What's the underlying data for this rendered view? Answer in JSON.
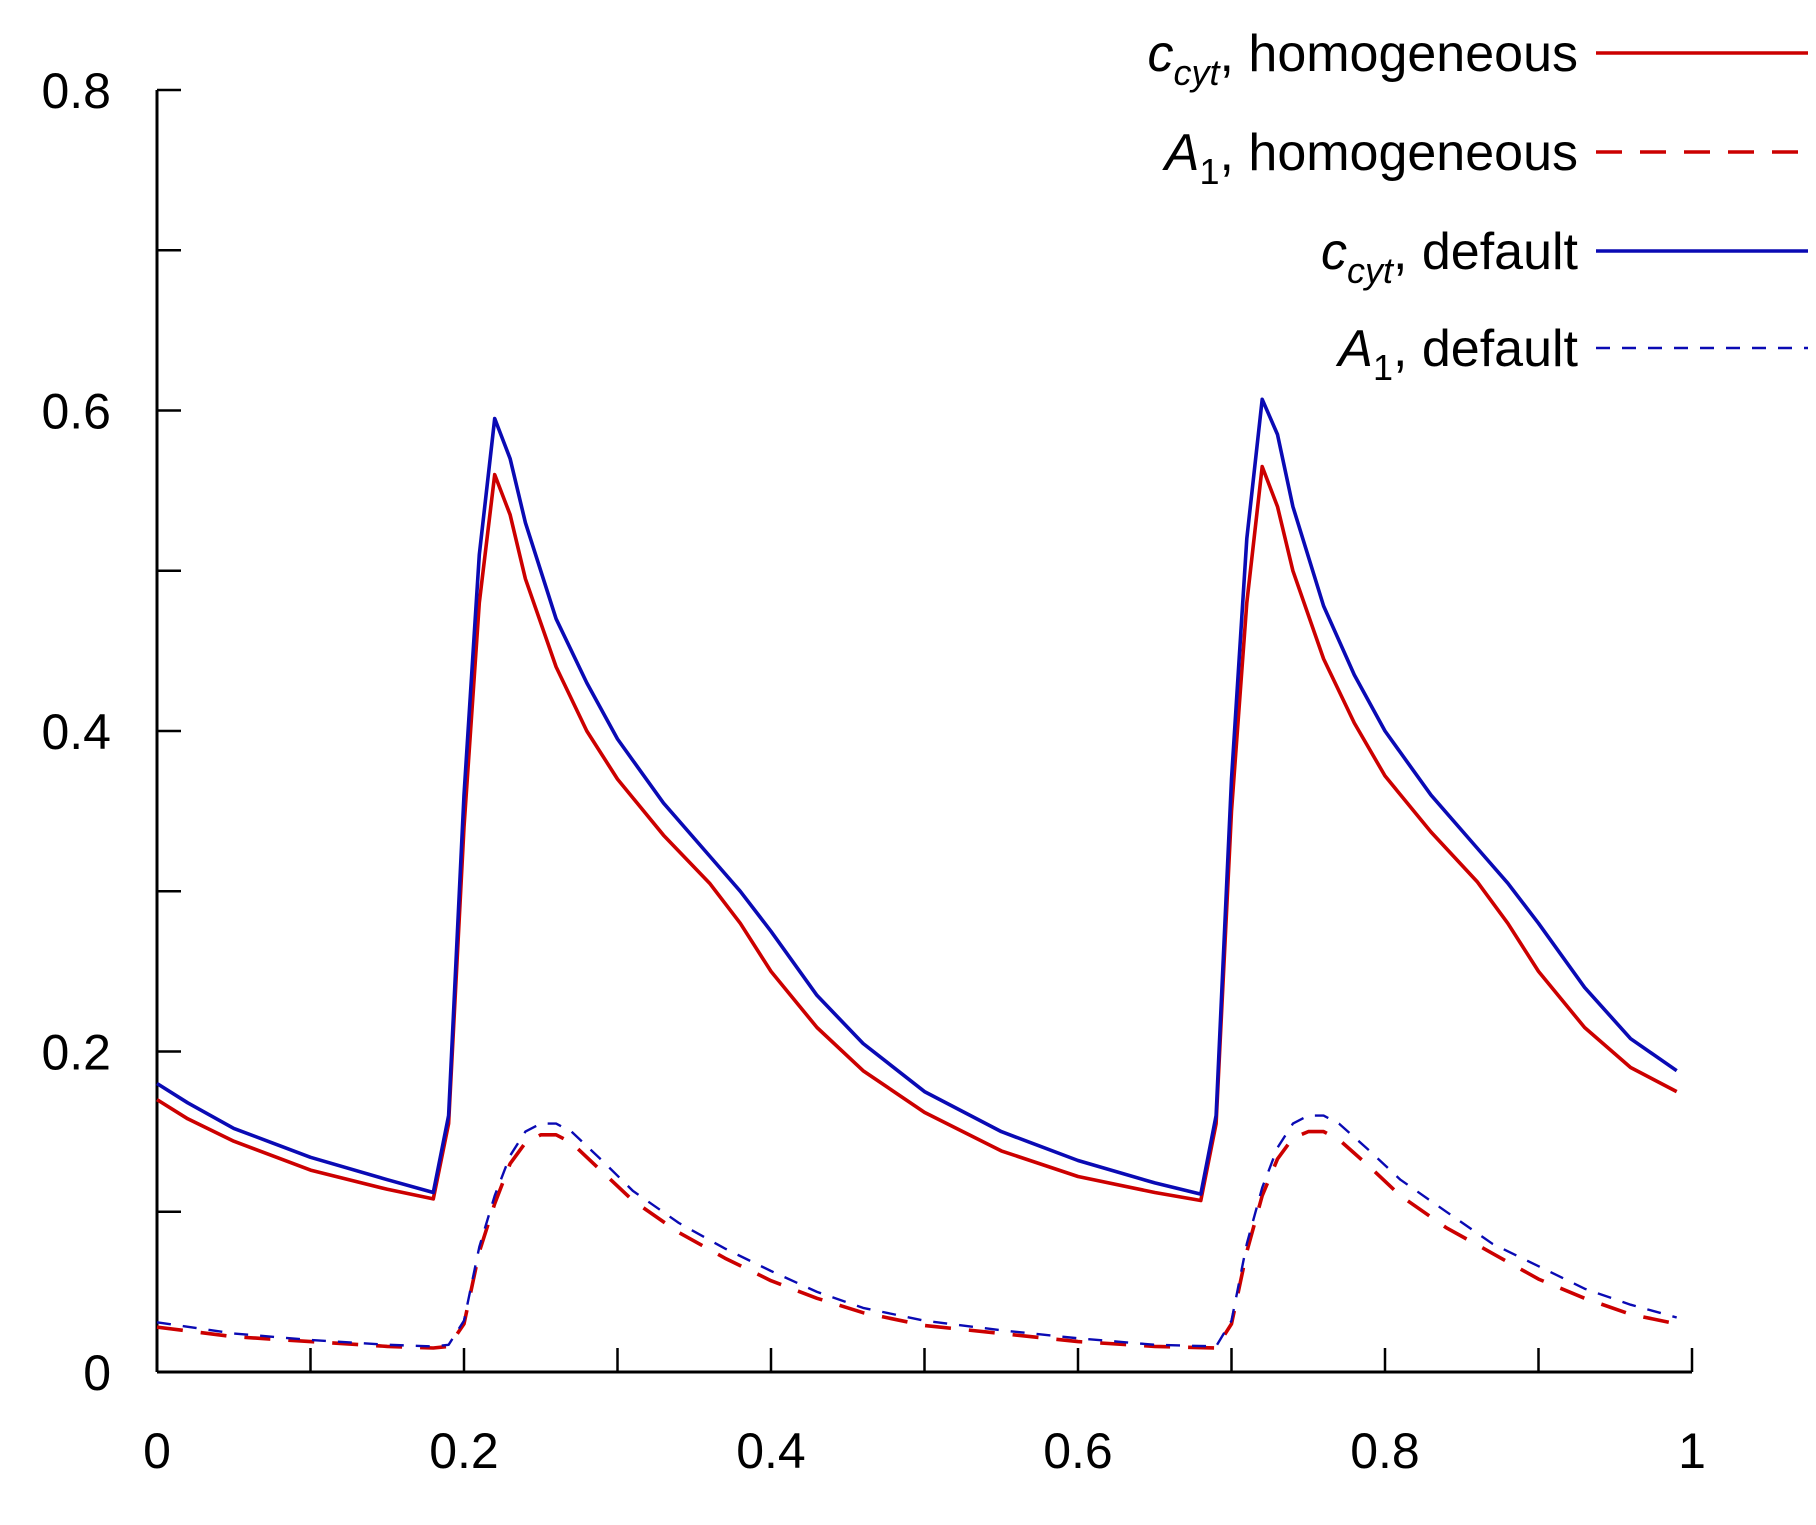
{
  "chart_data": {
    "type": "line",
    "title": "",
    "xlabel": "",
    "ylabel": "",
    "xlim": [
      0,
      1
    ],
    "ylim": [
      0,
      0.8
    ],
    "x_ticks": [
      0,
      0.1,
      0.2,
      0.3,
      0.4,
      0.5,
      0.6,
      0.7,
      0.8,
      0.9,
      1.0
    ],
    "x_tick_labels": [
      "0",
      "0.2",
      "0.4",
      "0.6",
      "0.8",
      "1"
    ],
    "x_tick_label_values": [
      0,
      0.2,
      0.4,
      0.6,
      0.8,
      1
    ],
    "y_ticks": [
      0,
      0.1,
      0.2,
      0.3,
      0.4,
      0.5,
      0.6,
      0.7,
      0.8
    ],
    "y_tick_labels": [
      "0",
      "0.2",
      "0.4",
      "0.6",
      "0.8"
    ],
    "y_tick_label_values": [
      0,
      0.2,
      0.4,
      0.6,
      0.8
    ],
    "grid": false,
    "legend_position": "top-right",
    "series": [
      {
        "name_main": "c",
        "name_sub": "cyt",
        "name_rest": ", homogeneous",
        "color": "#cc0000",
        "dash": "solid",
        "points": [
          [
            0,
            0.17
          ],
          [
            0.02,
            0.158
          ],
          [
            0.05,
            0.144
          ],
          [
            0.1,
            0.126
          ],
          [
            0.15,
            0.114
          ],
          [
            0.18,
            0.108
          ],
          [
            0.19,
            0.155
          ],
          [
            0.2,
            0.34
          ],
          [
            0.21,
            0.48
          ],
          [
            0.22,
            0.56
          ],
          [
            0.23,
            0.535
          ],
          [
            0.24,
            0.495
          ],
          [
            0.26,
            0.44
          ],
          [
            0.28,
            0.4
          ],
          [
            0.3,
            0.37
          ],
          [
            0.33,
            0.335
          ],
          [
            0.36,
            0.305
          ],
          [
            0.38,
            0.28
          ],
          [
            0.4,
            0.25
          ],
          [
            0.43,
            0.215
          ],
          [
            0.46,
            0.188
          ],
          [
            0.5,
            0.162
          ],
          [
            0.55,
            0.138
          ],
          [
            0.6,
            0.122
          ],
          [
            0.65,
            0.112
          ],
          [
            0.68,
            0.107
          ],
          [
            0.69,
            0.155
          ],
          [
            0.7,
            0.35
          ],
          [
            0.71,
            0.48
          ],
          [
            0.72,
            0.565
          ],
          [
            0.73,
            0.54
          ],
          [
            0.74,
            0.5
          ],
          [
            0.76,
            0.445
          ],
          [
            0.78,
            0.405
          ],
          [
            0.8,
            0.372
          ],
          [
            0.83,
            0.337
          ],
          [
            0.86,
            0.306
          ],
          [
            0.88,
            0.28
          ],
          [
            0.9,
            0.25
          ],
          [
            0.93,
            0.215
          ],
          [
            0.96,
            0.19
          ],
          [
            0.99,
            0.175
          ]
        ]
      },
      {
        "name_main": "A",
        "name_sub": "1",
        "name_rest": ", homogeneous",
        "color": "#cc0000",
        "dash": "long-dash",
        "points": [
          [
            0,
            0.028
          ],
          [
            0.05,
            0.022
          ],
          [
            0.1,
            0.019
          ],
          [
            0.15,
            0.016
          ],
          [
            0.18,
            0.015
          ],
          [
            0.19,
            0.016
          ],
          [
            0.2,
            0.03
          ],
          [
            0.21,
            0.075
          ],
          [
            0.22,
            0.105
          ],
          [
            0.23,
            0.13
          ],
          [
            0.24,
            0.143
          ],
          [
            0.25,
            0.148
          ],
          [
            0.26,
            0.148
          ],
          [
            0.27,
            0.143
          ],
          [
            0.29,
            0.125
          ],
          [
            0.31,
            0.107
          ],
          [
            0.34,
            0.087
          ],
          [
            0.37,
            0.071
          ],
          [
            0.4,
            0.057
          ],
          [
            0.43,
            0.046
          ],
          [
            0.46,
            0.037
          ],
          [
            0.5,
            0.029
          ],
          [
            0.55,
            0.024
          ],
          [
            0.6,
            0.019
          ],
          [
            0.65,
            0.016
          ],
          [
            0.69,
            0.015
          ],
          [
            0.7,
            0.03
          ],
          [
            0.71,
            0.075
          ],
          [
            0.72,
            0.11
          ],
          [
            0.73,
            0.133
          ],
          [
            0.74,
            0.146
          ],
          [
            0.75,
            0.15
          ],
          [
            0.76,
            0.15
          ],
          [
            0.77,
            0.145
          ],
          [
            0.79,
            0.128
          ],
          [
            0.81,
            0.11
          ],
          [
            0.84,
            0.09
          ],
          [
            0.87,
            0.074
          ],
          [
            0.9,
            0.058
          ],
          [
            0.93,
            0.046
          ],
          [
            0.96,
            0.036
          ],
          [
            0.99,
            0.03
          ]
        ]
      },
      {
        "name_main": "c",
        "name_sub": "cyt",
        "name_rest": ", default",
        "color": "#0a0ab4",
        "dash": "solid",
        "points": [
          [
            0,
            0.18
          ],
          [
            0.02,
            0.168
          ],
          [
            0.05,
            0.152
          ],
          [
            0.1,
            0.134
          ],
          [
            0.15,
            0.12
          ],
          [
            0.18,
            0.112
          ],
          [
            0.19,
            0.16
          ],
          [
            0.2,
            0.36
          ],
          [
            0.21,
            0.51
          ],
          [
            0.22,
            0.595
          ],
          [
            0.23,
            0.57
          ],
          [
            0.24,
            0.53
          ],
          [
            0.26,
            0.47
          ],
          [
            0.28,
            0.43
          ],
          [
            0.3,
            0.395
          ],
          [
            0.33,
            0.355
          ],
          [
            0.36,
            0.322
          ],
          [
            0.38,
            0.3
          ],
          [
            0.4,
            0.275
          ],
          [
            0.43,
            0.235
          ],
          [
            0.46,
            0.205
          ],
          [
            0.5,
            0.175
          ],
          [
            0.55,
            0.15
          ],
          [
            0.6,
            0.132
          ],
          [
            0.65,
            0.118
          ],
          [
            0.68,
            0.111
          ],
          [
            0.69,
            0.16
          ],
          [
            0.7,
            0.37
          ],
          [
            0.71,
            0.52
          ],
          [
            0.72,
            0.607
          ],
          [
            0.73,
            0.585
          ],
          [
            0.74,
            0.54
          ],
          [
            0.76,
            0.478
          ],
          [
            0.78,
            0.435
          ],
          [
            0.8,
            0.4
          ],
          [
            0.83,
            0.36
          ],
          [
            0.86,
            0.327
          ],
          [
            0.88,
            0.305
          ],
          [
            0.9,
            0.28
          ],
          [
            0.93,
            0.24
          ],
          [
            0.96,
            0.208
          ],
          [
            0.99,
            0.188
          ]
        ]
      },
      {
        "name_main": "A",
        "name_sub": "1",
        "name_rest": ", default",
        "color": "#0a0ab4",
        "dash": "short-dash",
        "points": [
          [
            0,
            0.031
          ],
          [
            0.05,
            0.024
          ],
          [
            0.1,
            0.02
          ],
          [
            0.15,
            0.017
          ],
          [
            0.18,
            0.016
          ],
          [
            0.19,
            0.017
          ],
          [
            0.2,
            0.032
          ],
          [
            0.21,
            0.078
          ],
          [
            0.22,
            0.11
          ],
          [
            0.23,
            0.135
          ],
          [
            0.24,
            0.15
          ],
          [
            0.25,
            0.155
          ],
          [
            0.26,
            0.155
          ],
          [
            0.27,
            0.15
          ],
          [
            0.29,
            0.132
          ],
          [
            0.31,
            0.113
          ],
          [
            0.34,
            0.093
          ],
          [
            0.37,
            0.077
          ],
          [
            0.4,
            0.063
          ],
          [
            0.43,
            0.05
          ],
          [
            0.46,
            0.04
          ],
          [
            0.5,
            0.032
          ],
          [
            0.55,
            0.026
          ],
          [
            0.6,
            0.021
          ],
          [
            0.65,
            0.017
          ],
          [
            0.69,
            0.016
          ],
          [
            0.7,
            0.032
          ],
          [
            0.71,
            0.08
          ],
          [
            0.72,
            0.115
          ],
          [
            0.73,
            0.14
          ],
          [
            0.74,
            0.155
          ],
          [
            0.75,
            0.16
          ],
          [
            0.76,
            0.16
          ],
          [
            0.77,
            0.155
          ],
          [
            0.79,
            0.138
          ],
          [
            0.81,
            0.12
          ],
          [
            0.84,
            0.1
          ],
          [
            0.87,
            0.08
          ],
          [
            0.9,
            0.066
          ],
          [
            0.93,
            0.052
          ],
          [
            0.96,
            0.042
          ],
          [
            0.99,
            0.034
          ]
        ]
      }
    ]
  }
}
